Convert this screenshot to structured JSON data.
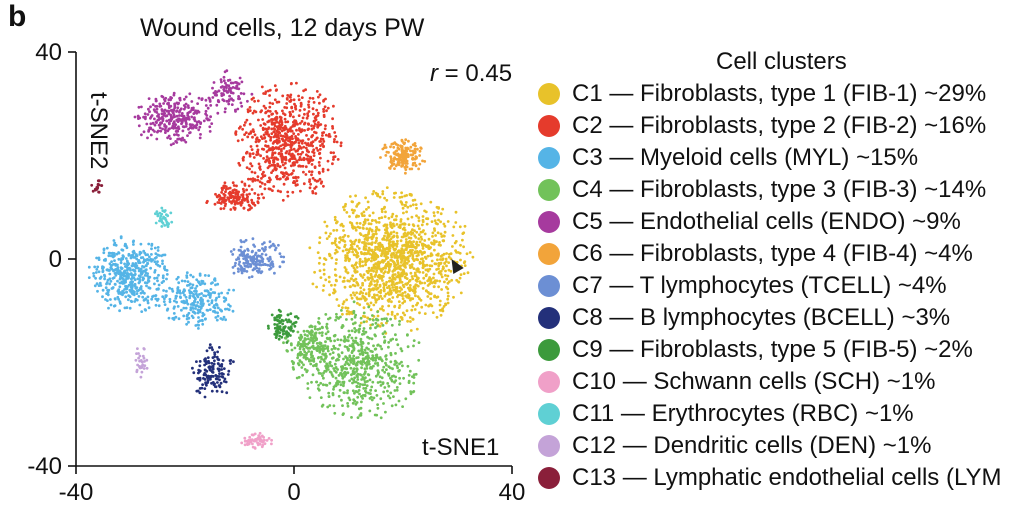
{
  "figure": {
    "panel_letter": "b",
    "stat_symbol": "r",
    "stat_text": " = 0.45"
  },
  "chart_data": {
    "type": "scatter",
    "title": "Wound cells, 12 days PW",
    "xlabel": "t-SNE1",
    "ylabel": "t-SNE2",
    "xlim": [
      -40,
      40
    ],
    "ylim": [
      -40,
      40
    ],
    "x_ticks": [
      -40,
      0,
      40
    ],
    "y_ticks": [
      -40,
      0,
      40
    ],
    "grid": false,
    "legend": {
      "title": "Cell clusters",
      "placement": "right"
    },
    "series": [
      {
        "name": "C1 — Fibroblasts, type 1 (FIB-1) ~29%",
        "color": "#e8c22a",
        "blobs": [
          {
            "cx": 18,
            "cy": 0,
            "rx": 14,
            "ry": 13,
            "n": 1300
          }
        ]
      },
      {
        "name": "C2 — Fibroblasts, type 2 (FIB-2) ~16%",
        "color": "#e53b2c",
        "blobs": [
          {
            "cx": -1,
            "cy": 23,
            "rx": 9,
            "ry": 11,
            "n": 700
          },
          {
            "cx": -11,
            "cy": 12,
            "rx": 5,
            "ry": 3,
            "n": 150
          }
        ]
      },
      {
        "name": "C3 — Myeloid cells (MYL) ~15%",
        "color": "#55b4e6",
        "blobs": [
          {
            "cx": -30,
            "cy": -3,
            "rx": 7,
            "ry": 7,
            "n": 450
          },
          {
            "cx": -18,
            "cy": -8,
            "rx": 7,
            "ry": 5,
            "n": 250
          }
        ]
      },
      {
        "name": "C4 — Fibroblasts, type 3 (FIB-3) ~14%",
        "color": "#72c25a",
        "blobs": [
          {
            "cx": 12,
            "cy": -20,
            "rx": 11,
            "ry": 11,
            "n": 600
          },
          {
            "cx": 3,
            "cy": -17,
            "rx": 5,
            "ry": 5,
            "n": 150
          }
        ]
      },
      {
        "name": "C5 — Endothelial cells (ENDO) ~9%",
        "color": "#a63a9e",
        "blobs": [
          {
            "cx": -22,
            "cy": 27,
            "rx": 7,
            "ry": 5,
            "n": 300
          },
          {
            "cx": -12,
            "cy": 32,
            "rx": 4,
            "ry": 4,
            "n": 100
          }
        ]
      },
      {
        "name": "C6 — Fibroblasts, type 4 (FIB-4) ~4%",
        "color": "#f2a43a",
        "blobs": [
          {
            "cx": 20,
            "cy": 20,
            "rx": 4,
            "ry": 3.5,
            "n": 160
          }
        ]
      },
      {
        "name": "C7 — T lymphocytes (TCELL) ~4%",
        "color": "#6c8fd4",
        "blobs": [
          {
            "cx": -7,
            "cy": 0,
            "rx": 5,
            "ry": 4,
            "n": 160
          }
        ]
      },
      {
        "name": "C8 — B lymphocytes (BCELL) ~3%",
        "color": "#23307a",
        "blobs": [
          {
            "cx": -15,
            "cy": -22,
            "rx": 4,
            "ry": 5,
            "n": 140
          }
        ]
      },
      {
        "name": "C9 — Fibroblasts, type 5 (FIB-5) ~2%",
        "color": "#3c9a3c",
        "blobs": [
          {
            "cx": -2,
            "cy": -13,
            "rx": 3,
            "ry": 3,
            "n": 90
          }
        ]
      },
      {
        "name": "C10 — Schwann cells (SCH) ~1%",
        "color": "#f0a0c8",
        "blobs": [
          {
            "cx": -7,
            "cy": -35,
            "rx": 3,
            "ry": 1.5,
            "n": 60
          }
        ]
      },
      {
        "name": "C11 — Erythrocytes (RBC) ~1%",
        "color": "#5fd0d4",
        "blobs": [
          {
            "cx": -24,
            "cy": 8,
            "rx": 1.6,
            "ry": 2,
            "n": 35
          }
        ]
      },
      {
        "name": "C12 — Dendritic cells (DEN) ~1%",
        "color": "#c4a3d8",
        "blobs": [
          {
            "cx": -28,
            "cy": -20,
            "rx": 1.2,
            "ry": 3,
            "n": 30
          }
        ]
      },
      {
        "name": "C13 — Lymphatic endothelial cells (LYM",
        "color": "#8a1f3a",
        "blobs": [
          {
            "cx": -36,
            "cy": 14,
            "rx": 1.2,
            "ry": 1.2,
            "n": 18
          }
        ]
      }
    ]
  }
}
